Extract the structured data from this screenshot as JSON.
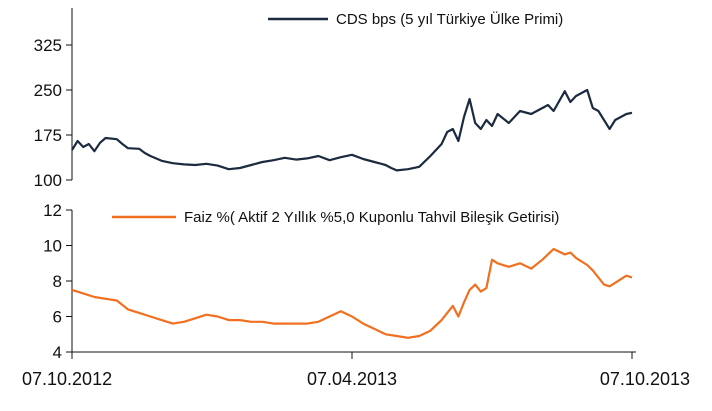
{
  "chart_data": [
    {
      "type": "line",
      "title": "",
      "xlabel": "",
      "ylabel": "",
      "ylim": [
        100,
        350
      ],
      "yticks": [
        100,
        175,
        250,
        325
      ],
      "legend_position": "top-right",
      "grid": false,
      "series": [
        {
          "name": "CDS bps (5 yıl Türkiye Ülke Primi)",
          "color": "#1c2b3f",
          "x": [
            0,
            0.01,
            0.02,
            0.03,
            0.04,
            0.05,
            0.06,
            0.08,
            0.09,
            0.1,
            0.12,
            0.13,
            0.14,
            0.16,
            0.18,
            0.2,
            0.22,
            0.24,
            0.26,
            0.28,
            0.3,
            0.32,
            0.34,
            0.36,
            0.38,
            0.4,
            0.42,
            0.44,
            0.46,
            0.48,
            0.5,
            0.52,
            0.54,
            0.56,
            0.57,
            0.58,
            0.6,
            0.62,
            0.64,
            0.66,
            0.67,
            0.68,
            0.69,
            0.7,
            0.71,
            0.72,
            0.73,
            0.74,
            0.75,
            0.76,
            0.78,
            0.8,
            0.82,
            0.84,
            0.85,
            0.86,
            0.88,
            0.89,
            0.9,
            0.91,
            0.92,
            0.93,
            0.94,
            0.95,
            0.96,
            0.97,
            0.98,
            0.99,
            1.0
          ],
          "y": [
            150,
            165,
            155,
            160,
            148,
            162,
            170,
            168,
            160,
            153,
            152,
            145,
            140,
            132,
            128,
            126,
            125,
            127,
            124,
            118,
            120,
            125,
            130,
            133,
            137,
            134,
            136,
            140,
            133,
            138,
            142,
            135,
            130,
            125,
            120,
            116,
            118,
            122,
            140,
            160,
            180,
            185,
            165,
            205,
            235,
            195,
            185,
            200,
            190,
            210,
            195,
            215,
            210,
            220,
            225,
            215,
            248,
            230,
            240,
            245,
            250,
            220,
            215,
            200,
            185,
            200,
            205,
            210,
            212
          ]
        }
      ]
    },
    {
      "type": "line",
      "title": "",
      "xlabel": "",
      "ylabel": "",
      "ylim": [
        4,
        12
      ],
      "yticks": [
        4,
        6,
        8,
        10,
        12
      ],
      "xticks": [
        "07.10.2012",
        "07.04.2013",
        "07.10.2013"
      ],
      "legend_position": "top-right",
      "grid": false,
      "series": [
        {
          "name": "Faiz %( Aktif 2 Yıllık %5,0 Kuponlu Tahvil Bileşik Getirisi)",
          "color": "#f07020",
          "x": [
            0,
            0.02,
            0.04,
            0.06,
            0.08,
            0.1,
            0.12,
            0.14,
            0.16,
            0.18,
            0.2,
            0.22,
            0.24,
            0.26,
            0.28,
            0.3,
            0.32,
            0.34,
            0.36,
            0.38,
            0.4,
            0.42,
            0.44,
            0.46,
            0.48,
            0.5,
            0.52,
            0.54,
            0.56,
            0.58,
            0.6,
            0.62,
            0.64,
            0.66,
            0.67,
            0.68,
            0.69,
            0.7,
            0.71,
            0.72,
            0.73,
            0.74,
            0.75,
            0.76,
            0.78,
            0.8,
            0.82,
            0.84,
            0.86,
            0.88,
            0.89,
            0.9,
            0.92,
            0.93,
            0.94,
            0.95,
            0.96,
            0.97,
            0.98,
            0.99,
            1.0
          ],
          "y": [
            7.5,
            7.3,
            7.1,
            7.0,
            6.9,
            6.4,
            6.2,
            6.0,
            5.8,
            5.6,
            5.7,
            5.9,
            6.1,
            6.0,
            5.8,
            5.8,
            5.7,
            5.7,
            5.6,
            5.6,
            5.6,
            5.6,
            5.7,
            6.0,
            6.3,
            6.0,
            5.6,
            5.3,
            5.0,
            4.9,
            4.8,
            4.9,
            5.2,
            5.8,
            6.2,
            6.6,
            6.0,
            6.8,
            7.5,
            7.8,
            7.4,
            7.6,
            9.2,
            9.0,
            8.8,
            9.0,
            8.7,
            9.2,
            9.8,
            9.5,
            9.6,
            9.3,
            8.9,
            8.6,
            8.2,
            7.8,
            7.7,
            7.9,
            8.1,
            8.3,
            8.2
          ]
        }
      ]
    }
  ]
}
